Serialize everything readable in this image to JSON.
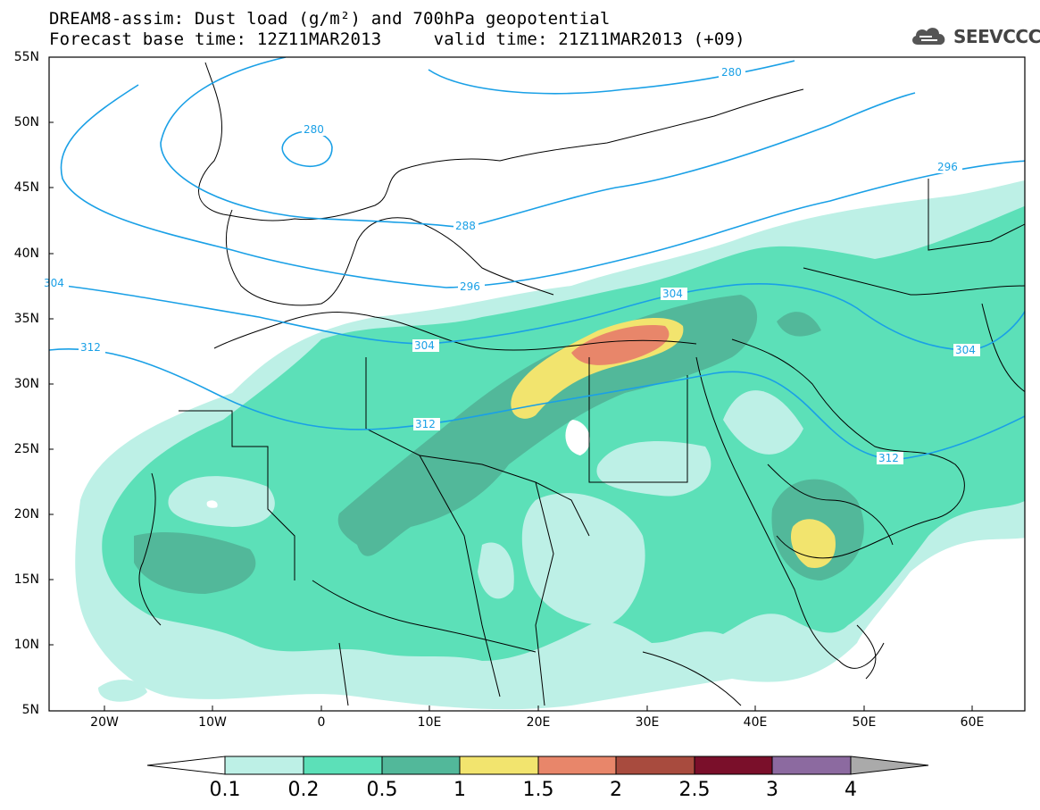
{
  "title": {
    "line1": "DREAM8-assim: Dust load (g/m²) and 700hPa geopotential",
    "line2": "Forecast base time: 12Z11MAR2013     valid time: 21Z11MAR2013 (+09)"
  },
  "logo": {
    "icon": "cloud-icon",
    "text": "SEEVCCC"
  },
  "axes": {
    "lat_labels": [
      "55N",
      "50N",
      "45N",
      "40N",
      "35N",
      "30N",
      "25N",
      "20N",
      "15N",
      "10N",
      "5N"
    ],
    "lon_labels": [
      "20W",
      "10W",
      "0",
      "10E",
      "20E",
      "30E",
      "40E",
      "50E",
      "60E"
    ]
  },
  "contour_labels": [
    "280",
    "280",
    "288",
    "296",
    "296",
    "304",
    "304",
    "304",
    "304",
    "312",
    "312",
    "312"
  ],
  "colorbar": {
    "ticks": [
      "0.1",
      "0.2",
      "0.5",
      "1",
      "1.5",
      "2",
      "2.5",
      "3",
      "4"
    ],
    "colors": [
      "#bdf0e6",
      "#5ce0b8",
      "#52b89a",
      "#f2e46e",
      "#e8866a",
      "#a84b3e",
      "#7a0f2a",
      "#8c6aa0",
      "#aaaaaa"
    ]
  },
  "colors": {
    "contour": "#1aa0e6",
    "border": "#000000",
    "dust_01": "#bdf0e6",
    "dust_02": "#5ce0b8",
    "dust_05": "#52b89a",
    "dust_1": "#f2e46e",
    "dust_15": "#e8866a"
  }
}
